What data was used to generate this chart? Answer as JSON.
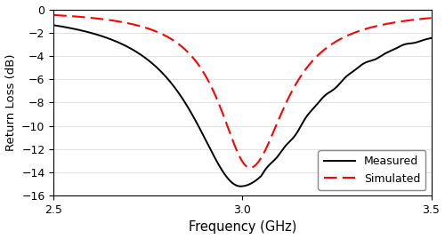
{
  "xlabel": "Frequency (GHz)",
  "ylabel": "Return Loss (dB)",
  "xlim": [
    2.5,
    3.5
  ],
  "ylim": [
    -16,
    0
  ],
  "yticks": [
    0,
    -2,
    -4,
    -6,
    -8,
    -10,
    -12,
    -14,
    -16
  ],
  "xticks": [
    2.5,
    3.0,
    3.5
  ],
  "legend": [
    "Measured",
    "Simulated"
  ],
  "measured_color": "#000000",
  "simulated_color": "#ff0000",
  "background_color": "#ffffff"
}
